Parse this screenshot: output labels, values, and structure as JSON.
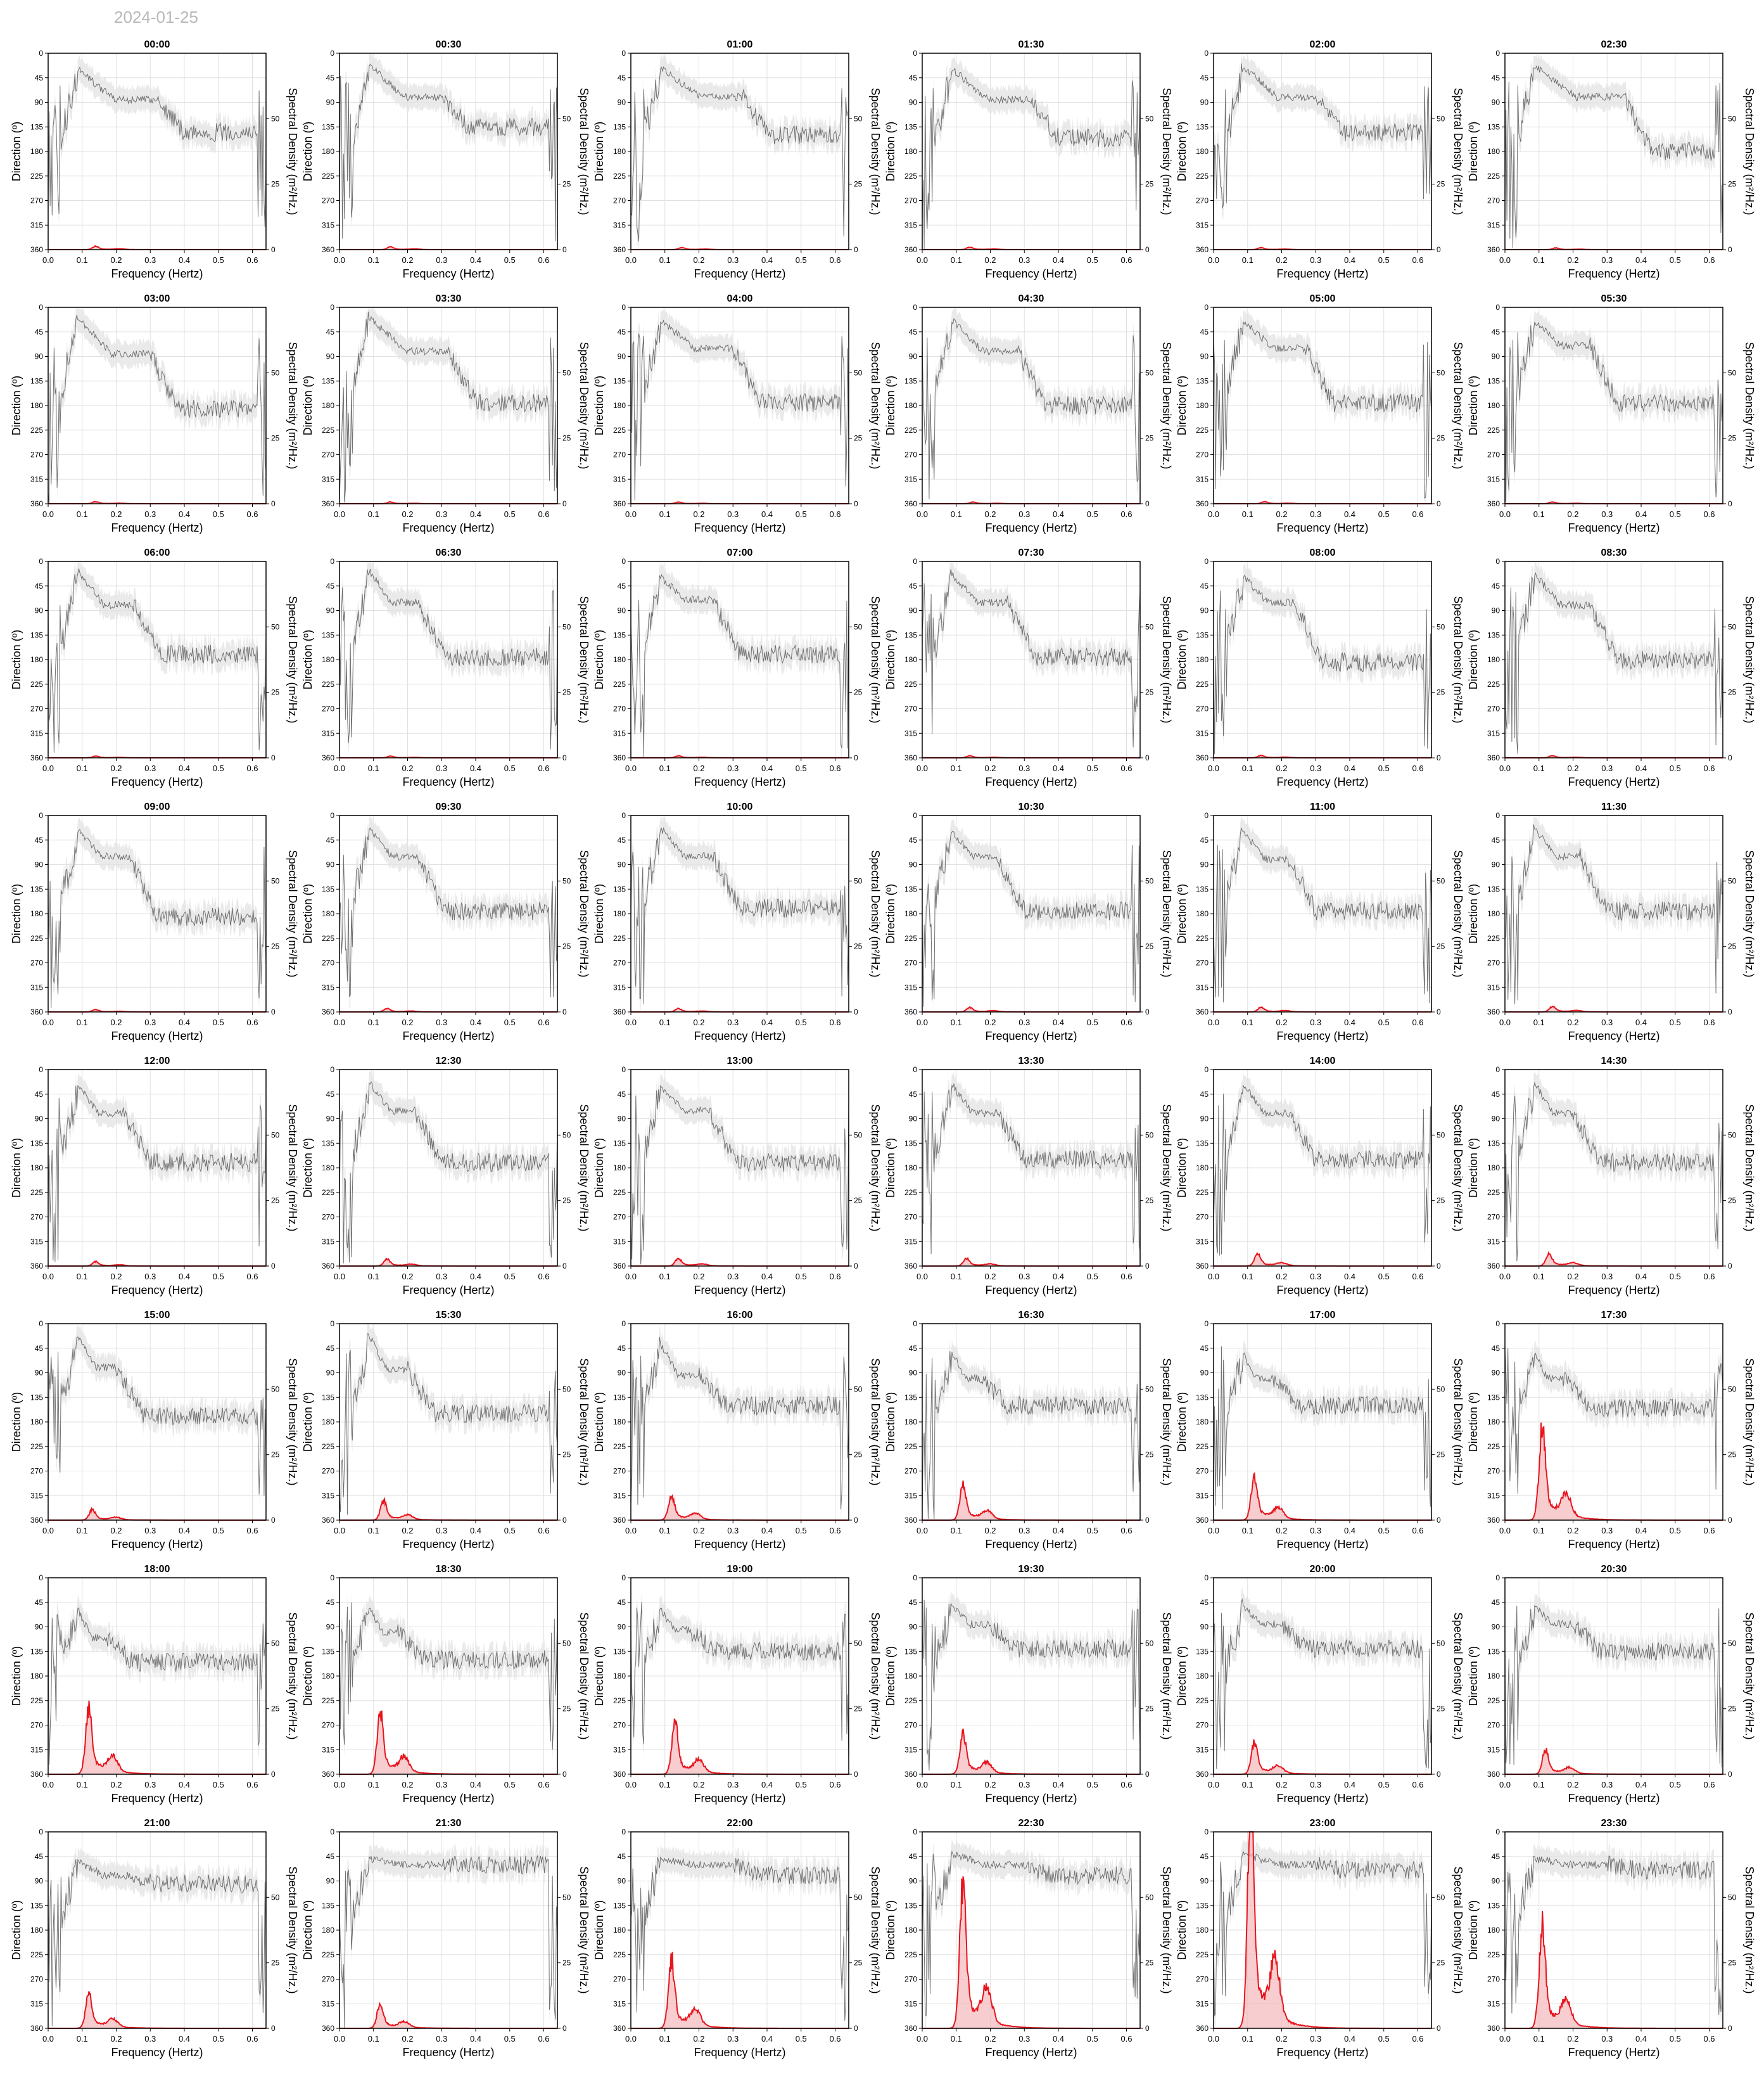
{
  "date": "2024-01-25",
  "labels": {
    "xlabel": "Frequency (Hertz)",
    "ylabel_left": "Direction (º)",
    "ylabel_right": "Spectral Density (m²/Hz.)"
  },
  "axes": {
    "x_ticks": [
      "0.0",
      "0.1",
      "0.2",
      "0.3",
      "0.4",
      "0.5",
      "0.6"
    ],
    "xlim": [
      0,
      0.64
    ],
    "dir_ticks": [
      "0",
      "45",
      "90",
      "135",
      "180",
      "225",
      "270",
      "315",
      "360"
    ],
    "dir_lim": [
      0,
      360
    ],
    "dens_ticks": [
      "0",
      "25",
      "50"
    ],
    "dens_lim": [
      0,
      75
    ]
  },
  "colors": {
    "density_line": "#e8141c",
    "density_fill": "#f4b8ba",
    "direction_line": "#5a5a5a",
    "direction_band": "#e3e3e3",
    "grid": "#e0e0e0",
    "date_text": "#b8b8b8"
  },
  "chart_data": [
    {
      "type": "line",
      "title": "00:00",
      "peak_density": 1.0,
      "peak_freq": 0.14,
      "dir_start": 30,
      "dir_plateau": 85,
      "dir_end": 145,
      "dir_step": 0.32
    },
    {
      "type": "line",
      "title": "00:30",
      "peak_density": 0.8,
      "peak_freq": 0.15,
      "dir_start": 20,
      "dir_plateau": 80,
      "dir_end": 135,
      "dir_step": 0.3
    },
    {
      "type": "line",
      "title": "01:00",
      "peak_density": 0.6,
      "peak_freq": 0.15,
      "dir_start": 25,
      "dir_plateau": 80,
      "dir_end": 150,
      "dir_step": 0.33
    },
    {
      "type": "line",
      "title": "01:30",
      "peak_density": 0.7,
      "peak_freq": 0.14,
      "dir_start": 30,
      "dir_plateau": 85,
      "dir_end": 155,
      "dir_step": 0.32
    },
    {
      "type": "line",
      "title": "02:00",
      "peak_density": 0.6,
      "peak_freq": 0.14,
      "dir_start": 25,
      "dir_plateau": 80,
      "dir_end": 145,
      "dir_step": 0.3
    },
    {
      "type": "line",
      "title": "02:30",
      "peak_density": 0.5,
      "peak_freq": 0.15,
      "dir_start": 25,
      "dir_plateau": 80,
      "dir_end": 180,
      "dir_step": 0.35
    },
    {
      "type": "line",
      "title": "03:00",
      "peak_density": 0.6,
      "peak_freq": 0.14,
      "dir_start": 20,
      "dir_plateau": 85,
      "dir_end": 185,
      "dir_step": 0.3
    },
    {
      "type": "line",
      "title": "03:30",
      "peak_density": 0.5,
      "peak_freq": 0.15,
      "dir_start": 20,
      "dir_plateau": 80,
      "dir_end": 175,
      "dir_step": 0.32
    },
    {
      "type": "line",
      "title": "04:00",
      "peak_density": 0.5,
      "peak_freq": 0.14,
      "dir_start": 25,
      "dir_plateau": 75,
      "dir_end": 175,
      "dir_step": 0.3
    },
    {
      "type": "line",
      "title": "04:30",
      "peak_density": 0.5,
      "peak_freq": 0.15,
      "dir_start": 25,
      "dir_plateau": 80,
      "dir_end": 180,
      "dir_step": 0.28
    },
    {
      "type": "line",
      "title": "05:00",
      "peak_density": 0.6,
      "peak_freq": 0.15,
      "dir_start": 25,
      "dir_plateau": 75,
      "dir_end": 175,
      "dir_step": 0.27
    },
    {
      "type": "line",
      "title": "05:30",
      "peak_density": 0.5,
      "peak_freq": 0.14,
      "dir_start": 25,
      "dir_plateau": 70,
      "dir_end": 175,
      "dir_step": 0.25
    },
    {
      "type": "line",
      "title": "06:00",
      "peak_density": 0.5,
      "peak_freq": 0.14,
      "dir_start": 20,
      "dir_plateau": 80,
      "dir_end": 170,
      "dir_step": 0.25
    },
    {
      "type": "line",
      "title": "06:30",
      "peak_density": 0.5,
      "peak_freq": 0.15,
      "dir_start": 20,
      "dir_plateau": 75,
      "dir_end": 175,
      "dir_step": 0.23
    },
    {
      "type": "line",
      "title": "07:00",
      "peak_density": 0.6,
      "peak_freq": 0.14,
      "dir_start": 30,
      "dir_plateau": 70,
      "dir_end": 170,
      "dir_step": 0.24
    },
    {
      "type": "line",
      "title": "07:30",
      "peak_density": 0.6,
      "peak_freq": 0.14,
      "dir_start": 25,
      "dir_plateau": 75,
      "dir_end": 175,
      "dir_step": 0.25
    },
    {
      "type": "line",
      "title": "08:00",
      "peak_density": 0.7,
      "peak_freq": 0.14,
      "dir_start": 30,
      "dir_plateau": 75,
      "dir_end": 185,
      "dir_step": 0.24
    },
    {
      "type": "line",
      "title": "08:30",
      "peak_density": 0.6,
      "peak_freq": 0.14,
      "dir_start": 25,
      "dir_plateau": 80,
      "dir_end": 180,
      "dir_step": 0.25
    },
    {
      "type": "line",
      "title": "09:00",
      "peak_density": 0.7,
      "peak_freq": 0.14,
      "dir_start": 30,
      "dir_plateau": 75,
      "dir_end": 185,
      "dir_step": 0.24
    },
    {
      "type": "line",
      "title": "09:30",
      "peak_density": 1.0,
      "peak_freq": 0.14,
      "dir_start": 25,
      "dir_plateau": 75,
      "dir_end": 175,
      "dir_step": 0.23
    },
    {
      "type": "line",
      "title": "10:00",
      "peak_density": 1.0,
      "peak_freq": 0.14,
      "dir_start": 25,
      "dir_plateau": 75,
      "dir_end": 170,
      "dir_step": 0.24
    },
    {
      "type": "line",
      "title": "10:30",
      "peak_density": 1.3,
      "peak_freq": 0.14,
      "dir_start": 30,
      "dir_plateau": 75,
      "dir_end": 175,
      "dir_step": 0.22
    },
    {
      "type": "line",
      "title": "11:00",
      "peak_density": 1.4,
      "peak_freq": 0.14,
      "dir_start": 30,
      "dir_plateau": 80,
      "dir_end": 175,
      "dir_step": 0.22
    },
    {
      "type": "line",
      "title": "11:30",
      "peak_density": 1.6,
      "peak_freq": 0.14,
      "dir_start": 25,
      "dir_plateau": 75,
      "dir_end": 175,
      "dir_step": 0.22
    },
    {
      "type": "line",
      "title": "12:00",
      "peak_density": 1.3,
      "peak_freq": 0.14,
      "dir_start": 30,
      "dir_plateau": 80,
      "dir_end": 170,
      "dir_step": 0.22
    },
    {
      "type": "line",
      "title": "12:30",
      "peak_density": 2.0,
      "peak_freq": 0.14,
      "dir_start": 25,
      "dir_plateau": 75,
      "dir_end": 170,
      "dir_step": 0.22
    },
    {
      "type": "line",
      "title": "13:00",
      "peak_density": 2.2,
      "peak_freq": 0.14,
      "dir_start": 30,
      "dir_plateau": 75,
      "dir_end": 170,
      "dir_step": 0.23
    },
    {
      "type": "line",
      "title": "13:30",
      "peak_density": 2.2,
      "peak_freq": 0.13,
      "dir_start": 30,
      "dir_plateau": 80,
      "dir_end": 165,
      "dir_step": 0.22
    },
    {
      "type": "line",
      "title": "14:00",
      "peak_density": 3.5,
      "peak_freq": 0.13,
      "dir_start": 30,
      "dir_plateau": 80,
      "dir_end": 165,
      "dir_step": 0.22
    },
    {
      "type": "line",
      "title": "14:30",
      "peak_density": 3.5,
      "peak_freq": 0.13,
      "dir_start": 25,
      "dir_plateau": 80,
      "dir_end": 170,
      "dir_step": 0.2
    },
    {
      "type": "line",
      "title": "15:00",
      "peak_density": 3.0,
      "peak_freq": 0.13,
      "dir_start": 25,
      "dir_plateau": 80,
      "dir_end": 170,
      "dir_step": 0.2
    },
    {
      "type": "line",
      "title": "15:30",
      "peak_density": 5.5,
      "peak_freq": 0.13,
      "dir_start": 25,
      "dir_plateau": 85,
      "dir_end": 165,
      "dir_step": 0.2
    },
    {
      "type": "line",
      "title": "16:00",
      "peak_density": 7.0,
      "peak_freq": 0.12,
      "dir_start": 40,
      "dir_plateau": 95,
      "dir_end": 150,
      "dir_step": 0.2
    },
    {
      "type": "line",
      "title": "16:30",
      "peak_density": 10.0,
      "peak_freq": 0.12,
      "dir_start": 55,
      "dir_plateau": 100,
      "dir_end": 150,
      "dir_step": 0.17
    },
    {
      "type": "line",
      "title": "17:00",
      "peak_density": 13.0,
      "peak_freq": 0.12,
      "dir_start": 60,
      "dir_plateau": 100,
      "dir_end": 150,
      "dir_step": 0.17
    },
    {
      "type": "line",
      "title": "17:30",
      "peak_density": 28.0,
      "peak_freq": 0.11,
      "dir_start": 60,
      "dir_plateau": 100,
      "dir_end": 155,
      "dir_step": 0.17
    },
    {
      "type": "line",
      "title": "18:00",
      "peak_density": 19.0,
      "peak_freq": 0.12,
      "dir_start": 60,
      "dir_plateau": 110,
      "dir_end": 155,
      "dir_step": 0.17
    },
    {
      "type": "line",
      "title": "18:30",
      "peak_density": 18.0,
      "peak_freq": 0.12,
      "dir_start": 60,
      "dir_plateau": 100,
      "dir_end": 150,
      "dir_step": 0.17
    },
    {
      "type": "line",
      "title": "19:00",
      "peak_density": 15.0,
      "peak_freq": 0.13,
      "dir_start": 60,
      "dir_plateau": 95,
      "dir_end": 135,
      "dir_step": 0.17
    },
    {
      "type": "line",
      "title": "19:30",
      "peak_density": 12.0,
      "peak_freq": 0.12,
      "dir_start": 55,
      "dir_plateau": 85,
      "dir_end": 130,
      "dir_step": 0.2
    },
    {
      "type": "line",
      "title": "20:00",
      "peak_density": 9.0,
      "peak_freq": 0.12,
      "dir_start": 55,
      "dir_plateau": 85,
      "dir_end": 130,
      "dir_step": 0.2
    },
    {
      "type": "line",
      "title": "20:30",
      "peak_density": 7.0,
      "peak_freq": 0.12,
      "dir_start": 55,
      "dir_plateau": 85,
      "dir_end": 135,
      "dir_step": 0.2
    },
    {
      "type": "line",
      "title": "21:00",
      "peak_density": 10.0,
      "peak_freq": 0.12,
      "dir_start": 55,
      "dir_plateau": 80,
      "dir_end": 95,
      "dir_step": 0.25
    },
    {
      "type": "line",
      "title": "21:30",
      "peak_density": 7.0,
      "peak_freq": 0.12,
      "dir_start": 50,
      "dir_plateau": 60,
      "dir_end": 60,
      "dir_step": 0.3
    },
    {
      "type": "line",
      "title": "22:00",
      "peak_density": 20.0,
      "peak_freq": 0.12,
      "dir_start": 50,
      "dir_plateau": 60,
      "dir_end": 80,
      "dir_step": 0.3
    },
    {
      "type": "line",
      "title": "22:30",
      "peak_density": 42.0,
      "peak_freq": 0.12,
      "dir_start": 40,
      "dir_plateau": 60,
      "dir_end": 80,
      "dir_step": 0.3
    },
    {
      "type": "line",
      "title": "23:00",
      "peak_density": 70.0,
      "peak_freq": 0.11,
      "dir_start": 40,
      "dir_plateau": 60,
      "dir_end": 70,
      "dir_step": 0.3
    },
    {
      "type": "line",
      "title": "23:30",
      "peak_density": 30.0,
      "peak_freq": 0.11,
      "dir_start": 50,
      "dir_plateau": 60,
      "dir_end": 70,
      "dir_step": 0.3
    }
  ]
}
